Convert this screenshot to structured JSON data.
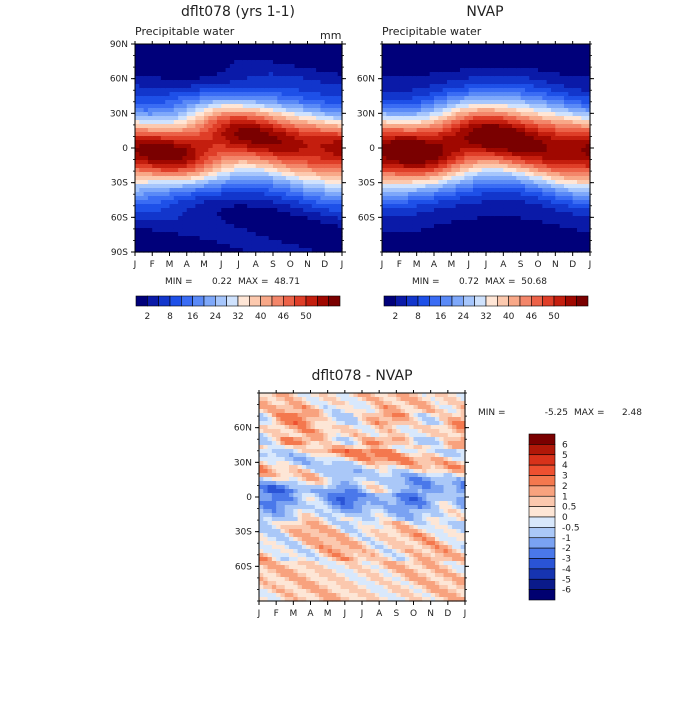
{
  "chart_data": [
    {
      "type": "heatmap",
      "id": "p1",
      "title": "dflt078 (yrs 1-1)",
      "subtitle": "Precipitable water",
      "units": "mm",
      "months": [
        "J",
        "F",
        "M",
        "A",
        "M",
        "J",
        "J",
        "A",
        "S",
        "O",
        "N",
        "D",
        "J"
      ],
      "yticks": [
        "90N",
        "60N",
        "30N",
        "0",
        "30S",
        "60S",
        "90S"
      ],
      "min_label": "MIN =",
      "min": "0.22",
      "max_label": "MAX =",
      "max": "48.71",
      "cbar_labels": [
        "2",
        "8",
        "16",
        "24",
        "32",
        "40",
        "46",
        "50"
      ],
      "peak": 48,
      "offset": 0.04
    },
    {
      "type": "heatmap",
      "id": "p2",
      "title": "NVAP",
      "subtitle": "Precipitable water",
      "months": [
        "J",
        "F",
        "M",
        "A",
        "M",
        "J",
        "J",
        "A",
        "S",
        "O",
        "N",
        "D",
        "J"
      ],
      "yticks": [
        "60N",
        "30N",
        "0",
        "30S",
        "60S"
      ],
      "min_label": "MIN =",
      "min": "0.72",
      "max_label": "MAX =",
      "max": "50.68",
      "cbar_labels": [
        "2",
        "8",
        "16",
        "24",
        "32",
        "40",
        "46",
        "50"
      ],
      "peak": 51,
      "offset": 0
    },
    {
      "type": "heatmap",
      "id": "p3",
      "title": "dflt078 - NVAP",
      "months": [
        "J",
        "F",
        "M",
        "A",
        "M",
        "J",
        "J",
        "A",
        "S",
        "O",
        "N",
        "D",
        "J"
      ],
      "yticks": [
        "60N",
        "30N",
        "0",
        "30S",
        "60S"
      ],
      "min_label": "MIN =",
      "min": "-5.25",
      "max_label": "MAX =",
      "max": "2.48",
      "cbar_labels": [
        "6",
        "5",
        "4",
        "3",
        "2",
        "1",
        "0.5",
        "0",
        "-0.5",
        "-1",
        "-2",
        "-3",
        "-4",
        "-5",
        "-6"
      ]
    }
  ],
  "palettes": {
    "precip": [
      "#00007a",
      "#0a1aa8",
      "#1236cc",
      "#1e50e8",
      "#3a6cf4",
      "#5a8af7",
      "#7ea8fa",
      "#a6c6fc",
      "#cfe2fd",
      "#ffe6d6",
      "#fcc9ae",
      "#f8a888",
      "#f3866a",
      "#ec6248",
      "#df3e28",
      "#c41e0e",
      "#a00800",
      "#7a0000"
    ],
    "diff": [
      "#7a0000",
      "#b01808",
      "#d8321a",
      "#ee5030",
      "#f4784e",
      "#f8a27e",
      "#fbc8ae",
      "#fde6d6",
      "#d8e8fc",
      "#aac8f8",
      "#7aa2f2",
      "#4a78ea",
      "#2a54d6",
      "#1634b0",
      "#0a1a8a",
      "#000070"
    ]
  }
}
